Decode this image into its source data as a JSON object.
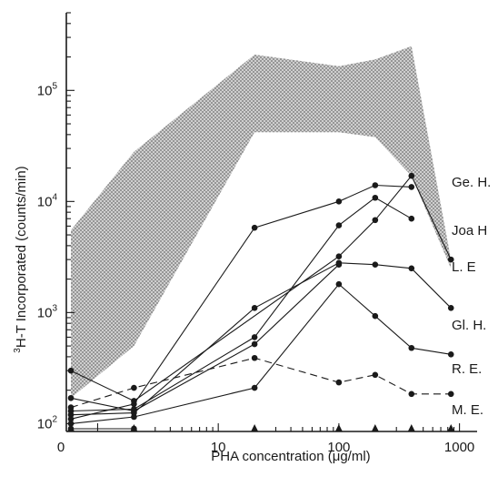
{
  "chart_data": {
    "type": "line",
    "xlabel": "PHA concentration (μg/ml)",
    "ylabel": "3H-T Incorporated (counts/min)",
    "ylabel_superscript": "3",
    "ylabel_rest": "H-T Incorporated (counts/min)",
    "x_scale": "log",
    "y_scale": "log",
    "xlim": [
      0.55,
      1400
    ],
    "ylim": [
      85,
      500000
    ],
    "x_ticks": [
      {
        "value": 0.6,
        "label": "0"
      },
      {
        "value": 10,
        "label": "10"
      },
      {
        "value": 100,
        "label": "100"
      },
      {
        "value": 1000,
        "label": "1000"
      }
    ],
    "y_ticks": [
      {
        "value": 100,
        "label": "10",
        "exp": "2"
      },
      {
        "value": 1000,
        "label": "10",
        "exp": "3"
      },
      {
        "value": 10000,
        "label": "10",
        "exp": "4"
      },
      {
        "value": 100000,
        "label": "10",
        "exp": "5"
      }
    ],
    "normal_range": {
      "x": [
        0.6,
        2,
        20,
        100,
        200,
        400,
        850
      ],
      "upper": [
        5500,
        28000,
        210000,
        165000,
        190000,
        250000,
        3000
      ],
      "lower": [
        170,
        500,
        42000,
        42000,
        38000,
        17000,
        2500
      ]
    },
    "series": [
      {
        "name": "Ge. H.",
        "dashed": false,
        "x": [
          0.6,
          2,
          20,
          100,
          200,
          400
        ],
        "y": [
          110,
          150,
          5800,
          10000,
          14000,
          13500
        ]
      },
      {
        "name": "Joa H",
        "dashed": false,
        "x": [
          0.6,
          2,
          20,
          100,
          200,
          400
        ],
        "y": [
          130,
          135,
          600,
          6100,
          10800,
          7000
        ]
      },
      {
        "name": "L. E",
        "dashed": false,
        "x": [
          0.6,
          2,
          100,
          200,
          400,
          850
        ],
        "y": [
          300,
          160,
          3200,
          6800,
          17000,
          3000
        ]
      },
      {
        "name": "Gl. H.",
        "dashed": false,
        "x": [
          0.6,
          2,
          20,
          100,
          200,
          400,
          850
        ],
        "y": [
          120,
          125,
          1100,
          2800,
          2700,
          2500,
          1100
        ]
      },
      {
        "name": "R. E.",
        "dashed": false,
        "x": [
          0.6,
          2,
          20,
          100,
          200,
          400,
          850
        ],
        "y": [
          100,
          115,
          210,
          1800,
          930,
          480,
          420
        ]
      },
      {
        "name": "M. E.",
        "dashed": true,
        "x": [
          0.6,
          2,
          20,
          100,
          200,
          400,
          850
        ],
        "y": [
          140,
          210,
          390,
          235,
          275,
          185,
          185
        ]
      }
    ],
    "extra_lines": [
      {
        "x": [
          0.6,
          2,
          20,
          100
        ],
        "y": [
          170,
          130,
          520,
          2700
        ],
        "dashed": false
      },
      {
        "x": [
          0.6,
          2
        ],
        "y": [
          90,
          90
        ],
        "dashed": false
      }
    ],
    "baseline_markers": {
      "x": [
        0.6,
        2,
        20,
        100,
        200,
        400,
        850
      ],
      "y": 90
    },
    "grid": false,
    "legend": "right"
  }
}
